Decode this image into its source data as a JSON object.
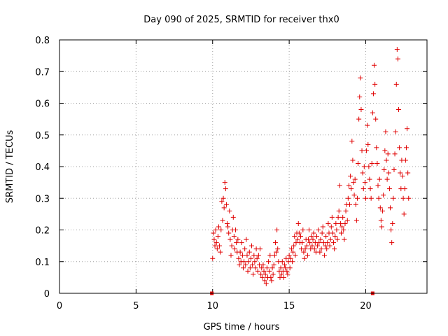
{
  "chart_data": {
    "type": "scatter",
    "title": "Day 090 of 2025, SRMTID for receiver thx0",
    "xlabel": "GPS time / hours",
    "ylabel": "SRMTID / TECUs",
    "xlim": [
      0,
      24
    ],
    "ylim": [
      0,
      0.8
    ],
    "xticks": [
      0,
      5,
      10,
      15,
      20
    ],
    "xtick_labels": [
      "0",
      "5",
      "10",
      "15",
      "20"
    ],
    "yticks": [
      0,
      0.1,
      0.2,
      0.3,
      0.4,
      0.5,
      0.6,
      0.7,
      0.8
    ],
    "ytick_labels": [
      "0",
      "0.1",
      "0.2",
      "0.3",
      "0.4",
      "0.5",
      "0.6",
      "0.7",
      "0.8"
    ],
    "grid": true,
    "marker": "+",
    "color": "#e00000",
    "data_gap_markers_x": [
      9.95,
      20.45
    ],
    "series": [
      {
        "name": "SRMTID",
        "points": [
          [
            10.0,
            0.11
          ],
          [
            10.05,
            0.19
          ],
          [
            10.1,
            0.17
          ],
          [
            10.15,
            0.15
          ],
          [
            10.2,
            0.2
          ],
          [
            10.25,
            0.16
          ],
          [
            10.3,
            0.14
          ],
          [
            10.35,
            0.18
          ],
          [
            10.4,
            0.21
          ],
          [
            10.45,
            0.15
          ],
          [
            10.5,
            0.13
          ],
          [
            10.55,
            0.2
          ],
          [
            10.6,
            0.29
          ],
          [
            10.65,
            0.23
          ],
          [
            10.7,
            0.3
          ],
          [
            10.75,
            0.27
          ],
          [
            10.8,
            0.35
          ],
          [
            10.85,
            0.33
          ],
          [
            10.9,
            0.28
          ],
          [
            10.95,
            0.22
          ],
          [
            11.0,
            0.21
          ],
          [
            11.05,
            0.19
          ],
          [
            11.1,
            0.26
          ],
          [
            11.15,
            0.17
          ],
          [
            11.2,
            0.12
          ],
          [
            11.25,
            0.15
          ],
          [
            11.3,
            0.2
          ],
          [
            11.35,
            0.24
          ],
          [
            11.4,
            0.18
          ],
          [
            11.45,
            0.14
          ],
          [
            11.5,
            0.2
          ],
          [
            11.55,
            0.16
          ],
          [
            11.6,
            0.13
          ],
          [
            11.65,
            0.17
          ],
          [
            11.7,
            0.11
          ],
          [
            11.75,
            0.09
          ],
          [
            11.8,
            0.13
          ],
          [
            11.85,
            0.1
          ],
          [
            11.9,
            0.16
          ],
          [
            11.95,
            0.12
          ],
          [
            12.0,
            0.08
          ],
          [
            12.05,
            0.1
          ],
          [
            12.1,
            0.14
          ],
          [
            12.15,
            0.09
          ],
          [
            12.2,
            0.17
          ],
          [
            12.25,
            0.12
          ],
          [
            12.3,
            0.07
          ],
          [
            12.35,
            0.1
          ],
          [
            12.4,
            0.13
          ],
          [
            12.45,
            0.08
          ],
          [
            12.5,
            0.11
          ],
          [
            12.55,
            0.15
          ],
          [
            12.6,
            0.09
          ],
          [
            12.65,
            0.06
          ],
          [
            12.7,
            0.12
          ],
          [
            12.75,
            0.1
          ],
          [
            12.8,
            0.08
          ],
          [
            12.85,
            0.14
          ],
          [
            12.9,
            0.11
          ],
          [
            12.95,
            0.07
          ],
          [
            13.0,
            0.12
          ],
          [
            13.05,
            0.09
          ],
          [
            13.1,
            0.14
          ],
          [
            13.15,
            0.06
          ],
          [
            13.2,
            0.08
          ],
          [
            13.25,
            0.05
          ],
          [
            13.3,
            0.09
          ],
          [
            13.35,
            0.07
          ],
          [
            13.4,
            0.04
          ],
          [
            13.45,
            0.06
          ],
          [
            13.5,
            0.03
          ],
          [
            13.55,
            0.08
          ],
          [
            13.6,
            0.05
          ],
          [
            13.65,
            0.1
          ],
          [
            13.7,
            0.07
          ],
          [
            13.75,
            0.12
          ],
          [
            13.8,
            0.05
          ],
          [
            13.85,
            0.04
          ],
          [
            13.9,
            0.08
          ],
          [
            13.95,
            0.06
          ],
          [
            14.0,
            0.09
          ],
          [
            14.05,
            0.12
          ],
          [
            14.1,
            0.16
          ],
          [
            14.15,
            0.13
          ],
          [
            14.2,
            0.2
          ],
          [
            14.25,
            0.14
          ],
          [
            14.3,
            0.1
          ],
          [
            14.35,
            0.07
          ],
          [
            14.4,
            0.05
          ],
          [
            14.45,
            0.08
          ],
          [
            14.5,
            0.06
          ],
          [
            14.55,
            0.1
          ],
          [
            14.6,
            0.07
          ],
          [
            14.65,
            0.05
          ],
          [
            14.7,
            0.09
          ],
          [
            14.75,
            0.08
          ],
          [
            14.8,
            0.11
          ],
          [
            14.85,
            0.07
          ],
          [
            14.9,
            0.06
          ],
          [
            14.95,
            0.1
          ],
          [
            15.0,
            0.12
          ],
          [
            15.05,
            0.08
          ],
          [
            15.1,
            0.11
          ],
          [
            15.15,
            0.14
          ],
          [
            15.2,
            0.1
          ],
          [
            15.25,
            0.13
          ],
          [
            15.3,
            0.15
          ],
          [
            15.35,
            0.18
          ],
          [
            15.4,
            0.12
          ],
          [
            15.45,
            0.16
          ],
          [
            15.5,
            0.19
          ],
          [
            15.55,
            0.17
          ],
          [
            15.6,
            0.22
          ],
          [
            15.65,
            0.19
          ],
          [
            15.7,
            0.16
          ],
          [
            15.75,
            0.18
          ],
          [
            15.8,
            0.14
          ],
          [
            15.85,
            0.16
          ],
          [
            15.9,
            0.2
          ],
          [
            15.95,
            0.13
          ],
          [
            16.0,
            0.11
          ],
          [
            16.05,
            0.14
          ],
          [
            16.1,
            0.17
          ],
          [
            16.15,
            0.15
          ],
          [
            16.2,
            0.12
          ],
          [
            16.25,
            0.17
          ],
          [
            16.3,
            0.2
          ],
          [
            16.35,
            0.16
          ],
          [
            16.4,
            0.14
          ],
          [
            16.45,
            0.18
          ],
          [
            16.5,
            0.15
          ],
          [
            16.55,
            0.17
          ],
          [
            16.6,
            0.19
          ],
          [
            16.65,
            0.14
          ],
          [
            16.7,
            0.16
          ],
          [
            16.75,
            0.13
          ],
          [
            16.8,
            0.18
          ],
          [
            16.85,
            0.15
          ],
          [
            16.9,
            0.2
          ],
          [
            16.95,
            0.16
          ],
          [
            17.0,
            0.13
          ],
          [
            17.05,
            0.17
          ],
          [
            17.1,
            0.14
          ],
          [
            17.15,
            0.19
          ],
          [
            17.2,
            0.21
          ],
          [
            17.25,
            0.16
          ],
          [
            17.3,
            0.12
          ],
          [
            17.35,
            0.15
          ],
          [
            17.4,
            0.18
          ],
          [
            17.45,
            0.14
          ],
          [
            17.5,
            0.16
          ],
          [
            17.55,
            0.22
          ],
          [
            17.6,
            0.19
          ],
          [
            17.65,
            0.15
          ],
          [
            17.7,
            0.17
          ],
          [
            17.75,
            0.21
          ],
          [
            17.8,
            0.24
          ],
          [
            17.85,
            0.19
          ],
          [
            17.9,
            0.16
          ],
          [
            17.95,
            0.14
          ],
          [
            18.0,
            0.18
          ],
          [
            18.05,
            0.22
          ],
          [
            18.1,
            0.2
          ],
          [
            18.15,
            0.17
          ],
          [
            18.2,
            0.24
          ],
          [
            18.25,
            0.26
          ],
          [
            18.3,
            0.34
          ],
          [
            18.35,
            0.22
          ],
          [
            18.4,
            0.19
          ],
          [
            18.45,
            0.21
          ],
          [
            18.5,
            0.24
          ],
          [
            18.55,
            0.2
          ],
          [
            18.6,
            0.17
          ],
          [
            18.65,
            0.22
          ],
          [
            18.7,
            0.26
          ],
          [
            18.75,
            0.28
          ],
          [
            18.8,
            0.23
          ],
          [
            18.85,
            0.3
          ],
          [
            18.9,
            0.34
          ],
          [
            18.95,
            0.28
          ],
          [
            19.0,
            0.37
          ],
          [
            19.05,
            0.33
          ],
          [
            19.1,
            0.48
          ],
          [
            19.15,
            0.42
          ],
          [
            19.2,
            0.35
          ],
          [
            19.25,
            0.31
          ],
          [
            19.3,
            0.36
          ],
          [
            19.35,
            0.28
          ],
          [
            19.4,
            0.23
          ],
          [
            19.45,
            0.3
          ],
          [
            19.5,
            0.41
          ],
          [
            19.55,
            0.55
          ],
          [
            19.6,
            0.62
          ],
          [
            19.65,
            0.68
          ],
          [
            19.7,
            0.58
          ],
          [
            19.75,
            0.45
          ],
          [
            19.8,
            0.38
          ],
          [
            19.85,
            0.33
          ],
          [
            19.9,
            0.4
          ],
          [
            19.95,
            0.35
          ],
          [
            20.0,
            0.3
          ],
          [
            20.05,
            0.45
          ],
          [
            20.1,
            0.53
          ],
          [
            20.15,
            0.47
          ],
          [
            20.2,
            0.4
          ],
          [
            20.25,
            0.36
          ],
          [
            20.3,
            0.33
          ],
          [
            20.35,
            0.3
          ],
          [
            20.4,
            0.41
          ],
          [
            20.45,
            0.57
          ],
          [
            20.5,
            0.63
          ],
          [
            20.55,
            0.72
          ],
          [
            20.6,
            0.66
          ],
          [
            20.65,
            0.55
          ],
          [
            20.7,
            0.46
          ],
          [
            20.75,
            0.41
          ],
          [
            20.8,
            0.34
          ],
          [
            20.85,
            0.3
          ],
          [
            20.9,
            0.36
          ],
          [
            20.95,
            0.27
          ],
          [
            21.0,
            0.23
          ],
          [
            21.05,
            0.21
          ],
          [
            21.1,
            0.26
          ],
          [
            21.15,
            0.31
          ],
          [
            21.2,
            0.39
          ],
          [
            21.25,
            0.45
          ],
          [
            21.3,
            0.51
          ],
          [
            21.35,
            0.42
          ],
          [
            21.4,
            0.36
          ],
          [
            21.45,
            0.44
          ],
          [
            21.5,
            0.38
          ],
          [
            21.55,
            0.33
          ],
          [
            21.6,
            0.27
          ],
          [
            21.65,
            0.2
          ],
          [
            21.7,
            0.16
          ],
          [
            21.75,
            0.22
          ],
          [
            21.8,
            0.3
          ],
          [
            21.85,
            0.39
          ],
          [
            21.9,
            0.44
          ],
          [
            21.95,
            0.51
          ],
          [
            22.0,
            0.66
          ],
          [
            22.05,
            0.77
          ],
          [
            22.1,
            0.74
          ],
          [
            22.15,
            0.58
          ],
          [
            22.2,
            0.46
          ],
          [
            22.25,
            0.38
          ],
          [
            22.3,
            0.33
          ],
          [
            22.35,
            0.42
          ],
          [
            22.4,
            0.37
          ],
          [
            22.45,
            0.3
          ],
          [
            22.5,
            0.25
          ],
          [
            22.55,
            0.33
          ],
          [
            22.6,
            0.42
          ],
          [
            22.65,
            0.46
          ],
          [
            22.7,
            0.52
          ],
          [
            22.75,
            0.38
          ],
          [
            22.8,
            0.3
          ]
        ]
      }
    ]
  }
}
